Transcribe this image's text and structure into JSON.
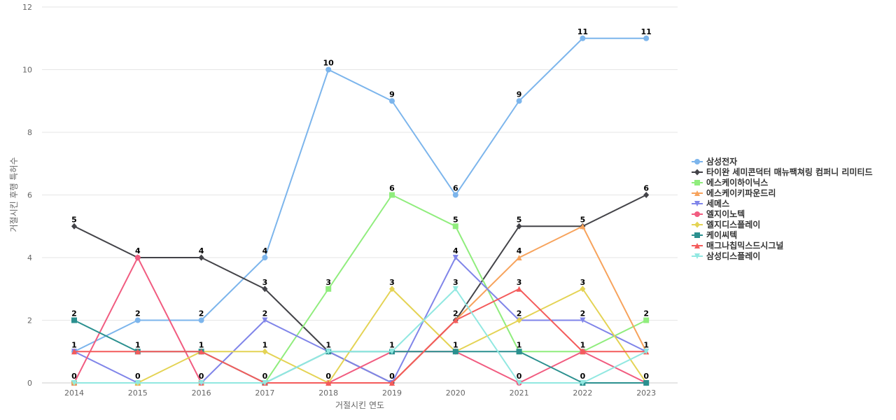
{
  "chart_data": {
    "type": "line",
    "title": "",
    "xlabel": "거절시킨 연도",
    "ylabel": "거절시킨 후행 특허수",
    "ylim": [
      0,
      12
    ],
    "yticks": [
      0,
      2,
      4,
      6,
      8,
      10,
      12
    ],
    "grid": true,
    "legend_position": "right",
    "x": [
      "2014",
      "2015",
      "2016",
      "2017",
      "2018",
      "2019",
      "2020",
      "2021",
      "2022",
      "2023"
    ],
    "series": [
      {
        "name": "삼성전자",
        "color": "#7cb5ec",
        "marker": "circle",
        "values": [
          1,
          2,
          2,
          4,
          10,
          9,
          6,
          9,
          11,
          11
        ]
      },
      {
        "name": "타이완 세미콘덕터 매뉴팩쳐링 컴퍼니 리미티드",
        "color": "#434348",
        "marker": "diamond",
        "values": [
          5,
          4,
          4,
          3,
          1,
          0,
          2,
          5,
          5,
          6
        ]
      },
      {
        "name": "에스케이하이닉스",
        "color": "#90ed7d",
        "marker": "square",
        "values": [
          0,
          0,
          0,
          0,
          3,
          6,
          5,
          1,
          1,
          2
        ]
      },
      {
        "name": "에스케이키파운드리",
        "color": "#f7a35c",
        "marker": "triangle",
        "values": [
          0,
          0,
          0,
          0,
          0,
          0,
          2,
          4,
          5,
          1
        ]
      },
      {
        "name": "세메스",
        "color": "#8085e9",
        "marker": "triangle-down",
        "values": [
          1,
          0,
          0,
          2,
          1,
          0,
          4,
          2,
          2,
          1
        ]
      },
      {
        "name": "엘지이노텍",
        "color": "#f15c80",
        "marker": "circle",
        "values": [
          0,
          4,
          0,
          0,
          0,
          1,
          1,
          0,
          1,
          0
        ]
      },
      {
        "name": "엘지디스플레이",
        "color": "#e4d354",
        "marker": "diamond",
        "values": [
          0,
          0,
          1,
          1,
          0,
          3,
          1,
          2,
          3,
          0
        ]
      },
      {
        "name": "케이씨텍",
        "color": "#2b908f",
        "marker": "square",
        "values": [
          2,
          1,
          1,
          0,
          1,
          1,
          1,
          1,
          0,
          0
        ]
      },
      {
        "name": "매그나칩믹스드시그널",
        "color": "#f45b5b",
        "marker": "triangle",
        "values": [
          1,
          1,
          1,
          0,
          0,
          0,
          2,
          3,
          1,
          1
        ]
      },
      {
        "name": "삼성디스플레이",
        "color": "#91e8e1",
        "marker": "triangle-down",
        "values": [
          0,
          0,
          0,
          0,
          1,
          1,
          3,
          0,
          0,
          1
        ]
      }
    ],
    "data_labels": [
      {
        "x": "2014",
        "value": "5"
      },
      {
        "x": "2014",
        "value": "2"
      },
      {
        "x": "2014",
        "value": "1"
      },
      {
        "x": "2014",
        "value": "0"
      },
      {
        "x": "2015",
        "value": "4"
      },
      {
        "x": "2015",
        "value": "2"
      },
      {
        "x": "2015",
        "value": "1"
      },
      {
        "x": "2015",
        "value": "0"
      },
      {
        "x": "2016",
        "value": "4"
      },
      {
        "x": "2016",
        "value": "2"
      },
      {
        "x": "2016",
        "value": "1"
      },
      {
        "x": "2016",
        "value": "0"
      },
      {
        "x": "2017",
        "value": "4"
      },
      {
        "x": "2017",
        "value": "3"
      },
      {
        "x": "2017",
        "value": "2"
      },
      {
        "x": "2017",
        "value": "1"
      },
      {
        "x": "2017",
        "value": "0"
      },
      {
        "x": "2018",
        "value": "10"
      },
      {
        "x": "2018",
        "value": "3"
      },
      {
        "x": "2018",
        "value": "1"
      },
      {
        "x": "2018",
        "value": "0"
      },
      {
        "x": "2019",
        "value": "9"
      },
      {
        "x": "2019",
        "value": "6"
      },
      {
        "x": "2019",
        "value": "3"
      },
      {
        "x": "2019",
        "value": "1"
      },
      {
        "x": "2019",
        "value": "0"
      },
      {
        "x": "2020",
        "value": "6"
      },
      {
        "x": "2020",
        "value": "5"
      },
      {
        "x": "2020",
        "value": "4"
      },
      {
        "x": "2020",
        "value": "3"
      },
      {
        "x": "2020",
        "value": "2"
      },
      {
        "x": "2020",
        "value": "1"
      },
      {
        "x": "2021",
        "value": "9"
      },
      {
        "x": "2021",
        "value": "5"
      },
      {
        "x": "2021",
        "value": "4"
      },
      {
        "x": "2021",
        "value": "3"
      },
      {
        "x": "2021",
        "value": "2"
      },
      {
        "x": "2021",
        "value": "1"
      },
      {
        "x": "2021",
        "value": "0"
      },
      {
        "x": "2022",
        "value": "11"
      },
      {
        "x": "2022",
        "value": "5"
      },
      {
        "x": "2022",
        "value": "3"
      },
      {
        "x": "2022",
        "value": "2"
      },
      {
        "x": "2022",
        "value": "1"
      },
      {
        "x": "2022",
        "value": "0"
      },
      {
        "x": "2023",
        "value": "11"
      },
      {
        "x": "2023",
        "value": "6"
      },
      {
        "x": "2023",
        "value": "2"
      },
      {
        "x": "2023",
        "value": "1"
      },
      {
        "x": "2023",
        "value": "0"
      }
    ]
  }
}
